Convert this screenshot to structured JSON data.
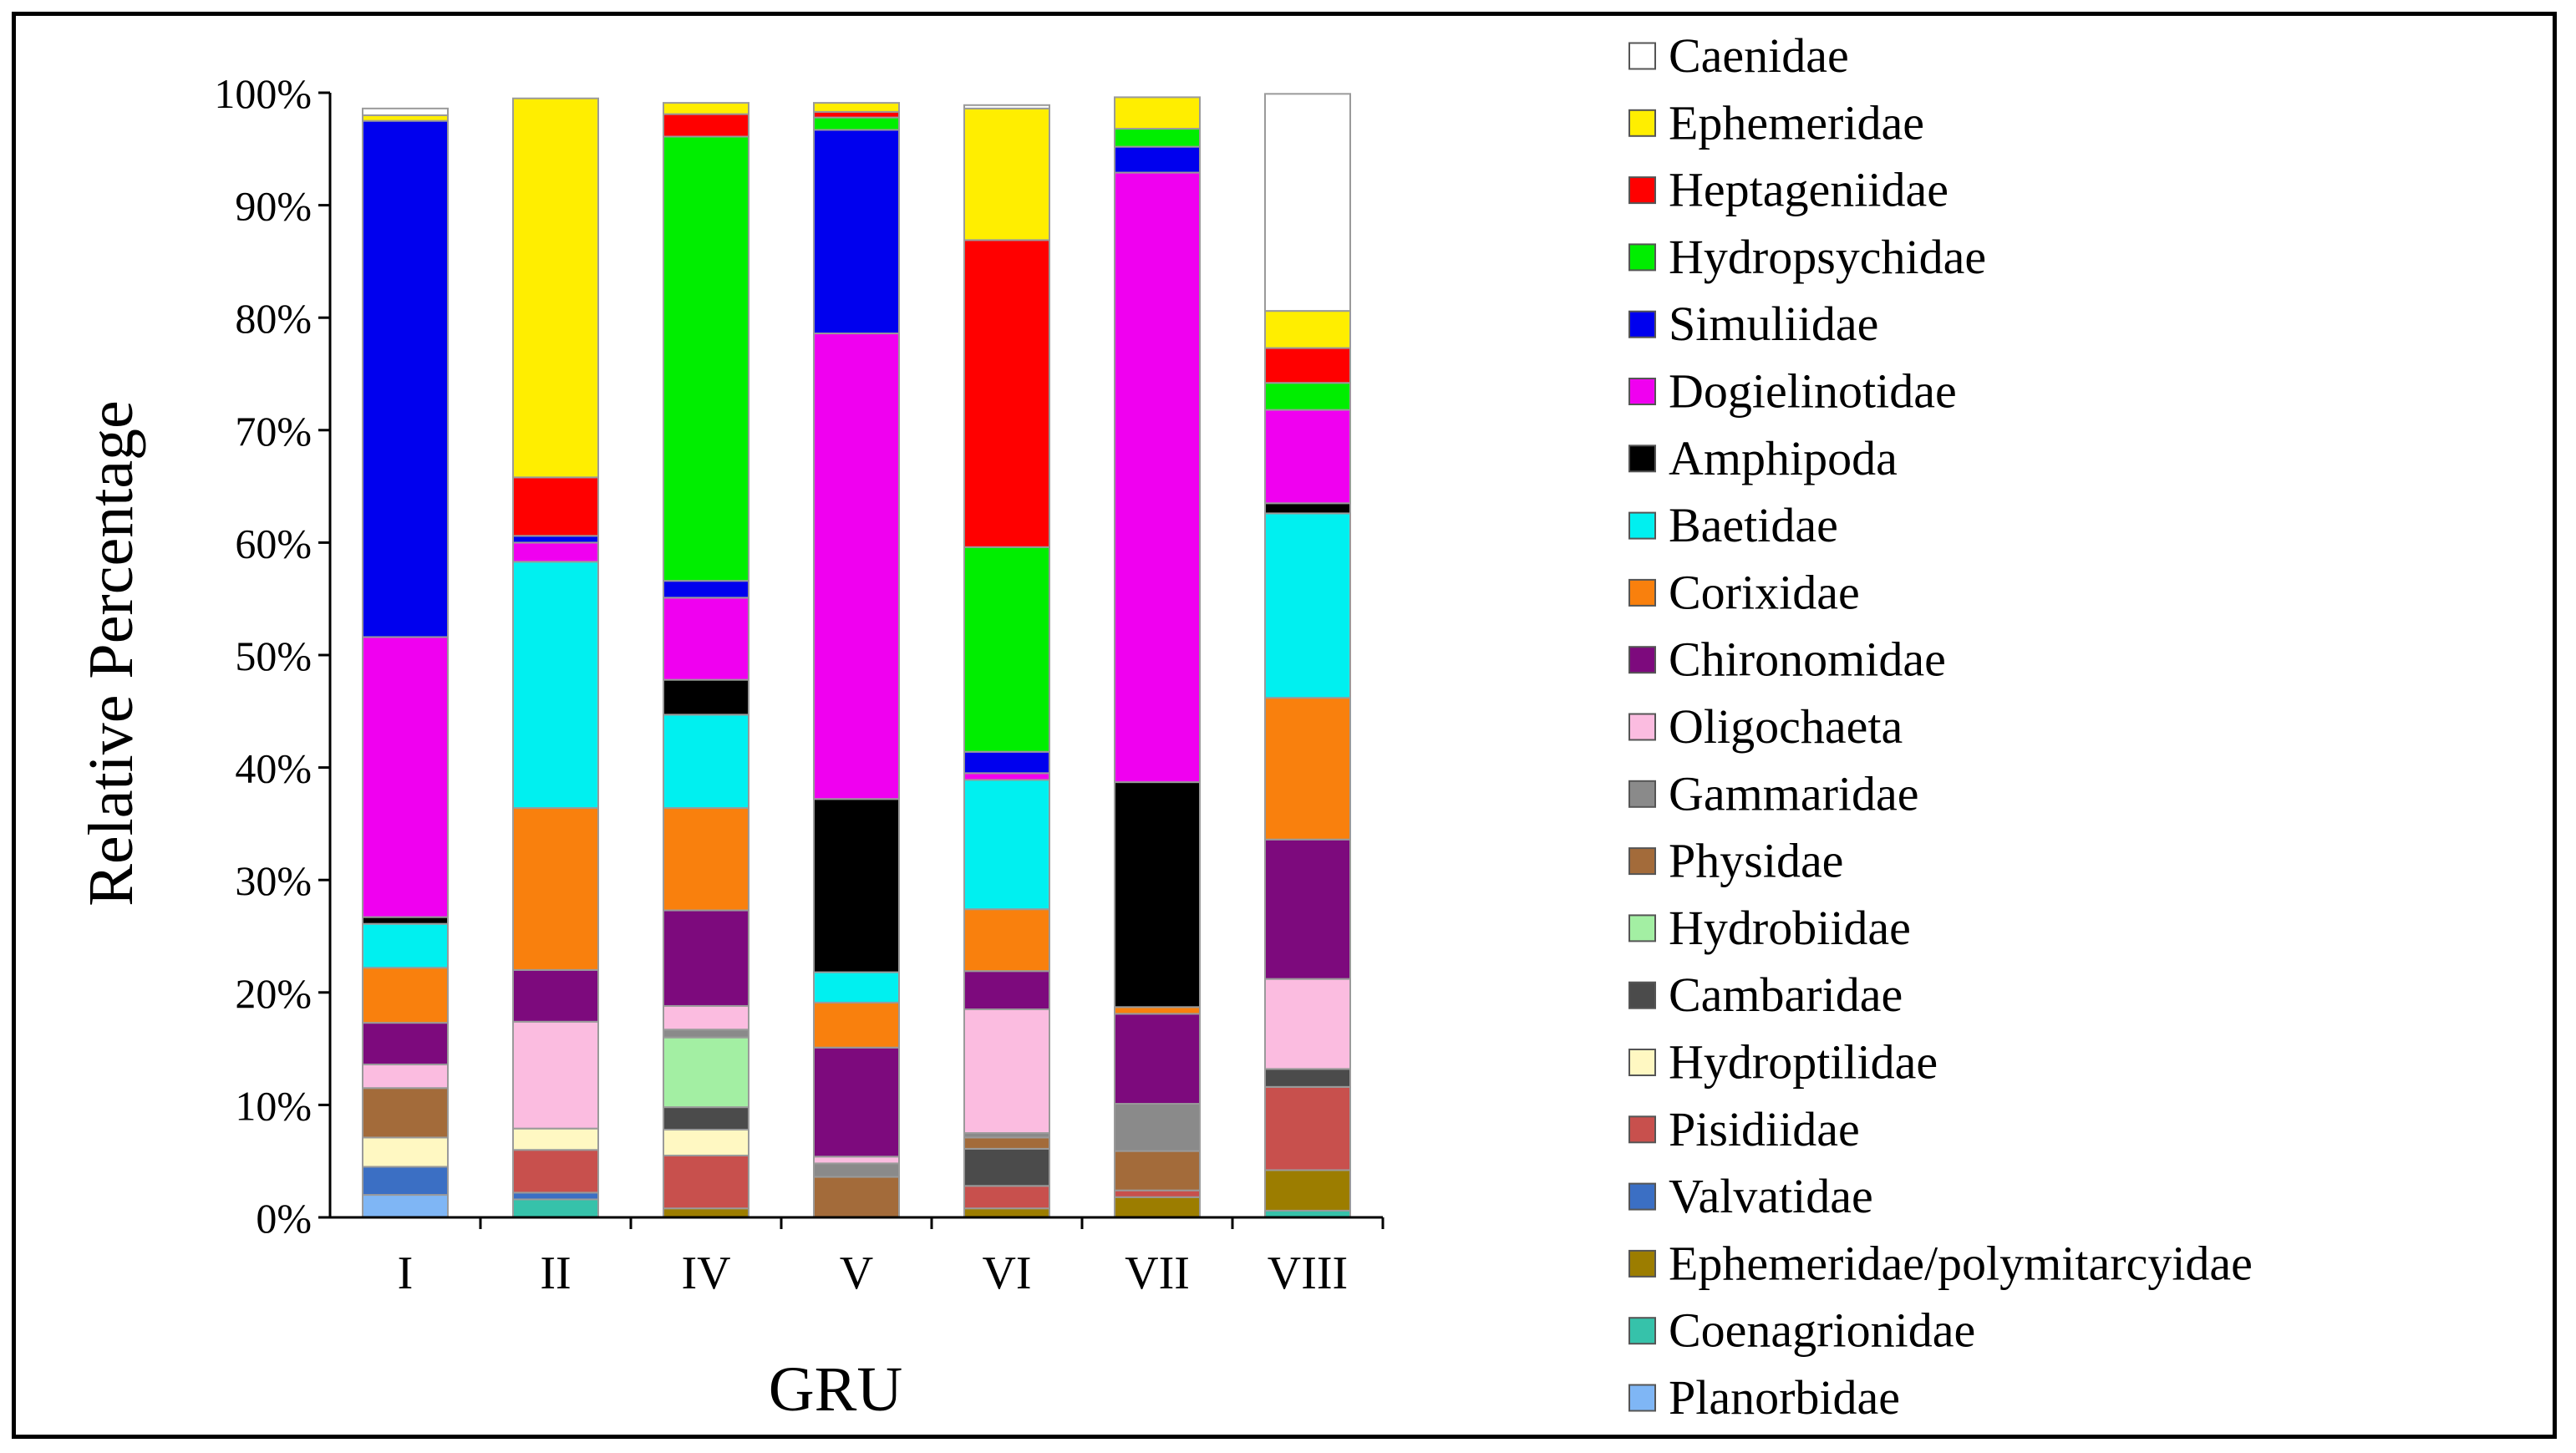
{
  "chart_data": {
    "type": "bar",
    "stacked": true,
    "title": "",
    "xlabel": "GRU",
    "ylabel": "Relative Percentage",
    "ylim": [
      0,
      100
    ],
    "yticks": [
      "0%",
      "10%",
      "20%",
      "30%",
      "40%",
      "50%",
      "60%",
      "70%",
      "80%",
      "90%",
      "100%"
    ],
    "legend_position": "right",
    "categories": [
      "I",
      "II",
      "IV",
      "V",
      "VI",
      "VII",
      "VIII"
    ],
    "series": [
      {
        "name": "Planorbidae",
        "color": "#7fb6f5",
        "values": [
          2.0,
          0,
          0,
          0,
          0,
          0,
          0
        ]
      },
      {
        "name": "Coenagrionidae",
        "color": "#36c2aa",
        "values": [
          0,
          1.6,
          0,
          0,
          0,
          0,
          0.6
        ]
      },
      {
        "name": "Ephemeridae/polymitarcyidae",
        "color": "#9c7d00",
        "values": [
          0,
          0,
          0.8,
          0,
          0.8,
          1.8,
          3.6
        ]
      },
      {
        "name": "Valvatidae",
        "color": "#3b6fc4",
        "values": [
          2.5,
          0.6,
          0,
          0,
          0,
          0,
          0
        ]
      },
      {
        "name": "Pisidiidae",
        "color": "#c8504d",
        "values": [
          0,
          3.8,
          4.7,
          0,
          2.0,
          0.6,
          7.4
        ]
      },
      {
        "name": "Hydroptilidae",
        "color": "#fff8c2",
        "values": [
          2.6,
          1.9,
          2.3,
          0,
          0,
          0,
          0
        ]
      },
      {
        "name": "Cambaridae",
        "color": "#4b4b4b",
        "values": [
          0,
          0,
          2.0,
          0,
          3.3,
          0,
          1.6
        ]
      },
      {
        "name": "Hydrobiidae",
        "color": "#a3efa3",
        "values": [
          0,
          0,
          6.2,
          0,
          0,
          0,
          0
        ]
      },
      {
        "name": "Physidae",
        "color": "#a36b3a",
        "values": [
          4.4,
          0,
          0,
          3.6,
          1.0,
          3.5,
          0
        ]
      },
      {
        "name": "Gammaridae",
        "color": "#8a8a8a",
        "values": [
          0,
          0,
          0.7,
          1.2,
          0.4,
          4.2,
          0
        ]
      },
      {
        "name": "Oligochaeta",
        "color": "#fbbce0",
        "values": [
          2.1,
          9.5,
          2.1,
          0.6,
          11.0,
          0,
          8.0
        ]
      },
      {
        "name": "Chironomidae",
        "color": "#7d0a7d",
        "values": [
          3.7,
          4.6,
          8.5,
          9.7,
          3.4,
          8.0,
          12.4
        ]
      },
      {
        "name": "Corixidae",
        "color": "#f9800d",
        "values": [
          4.9,
          14.4,
          9.1,
          4.0,
          5.5,
          0.6,
          12.6
        ]
      },
      {
        "name": "Baetidae",
        "color": "#00f0f0",
        "values": [
          3.9,
          21.9,
          8.3,
          2.7,
          11.5,
          0,
          16.4
        ]
      },
      {
        "name": "Amphipoda",
        "color": "#000000",
        "values": [
          0.6,
          0,
          3.1,
          15.4,
          0,
          20.0,
          0.9
        ]
      },
      {
        "name": "Dogielinotidae",
        "color": "#f000f0",
        "values": [
          24.9,
          1.7,
          7.3,
          41.4,
          0.6,
          54.2,
          8.3
        ]
      },
      {
        "name": "Simuliidae",
        "color": "#0000ee",
        "values": [
          45.9,
          0.6,
          1.5,
          18.1,
          1.9,
          2.3,
          0
        ]
      },
      {
        "name": "Hydropsychidae",
        "color": "#00ee00",
        "values": [
          0,
          0,
          39.5,
          1.1,
          18.2,
          1.6,
          2.4
        ]
      },
      {
        "name": "Heptageniidae",
        "color": "#ff0000",
        "values": [
          0,
          5.2,
          2.0,
          0.5,
          27.3,
          0,
          3.1
        ]
      },
      {
        "name": "Ephemeridae",
        "color": "#ffee00",
        "values": [
          0.5,
          33.7,
          1.0,
          0.8,
          11.7,
          2.8,
          3.3
        ]
      },
      {
        "name": "Caenidae",
        "color": "#ffffff",
        "values": [
          0.6,
          0,
          0,
          0,
          0.3,
          0,
          19.3
        ]
      }
    ]
  }
}
